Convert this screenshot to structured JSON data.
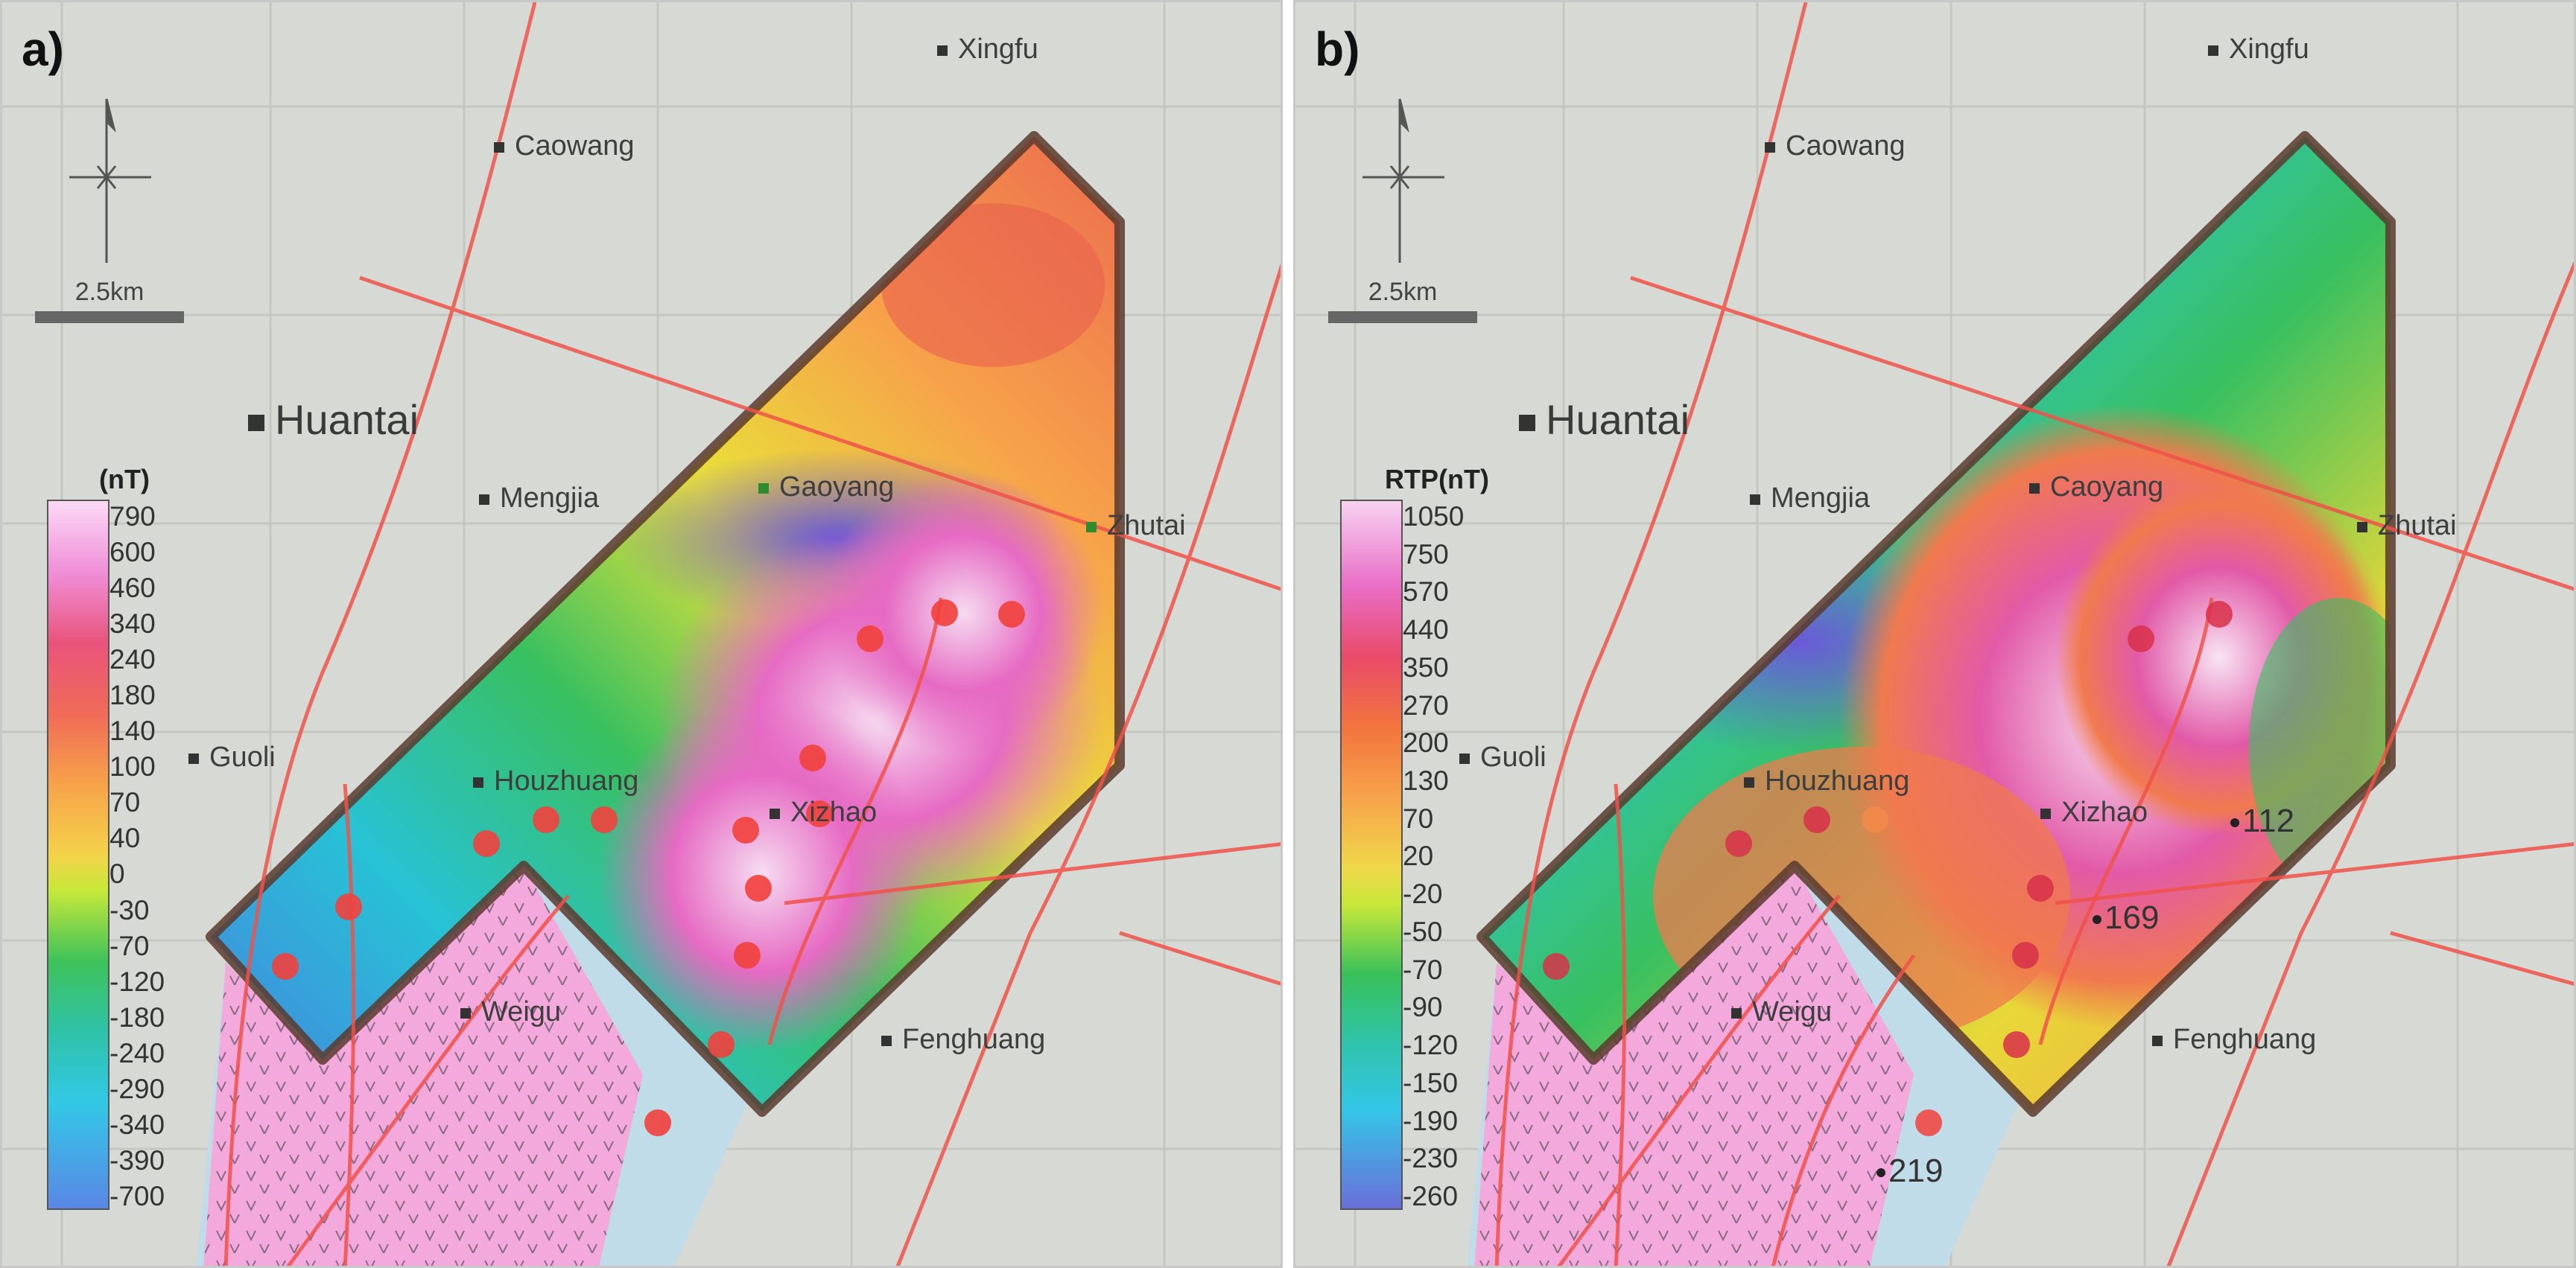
{
  "panels": [
    {
      "label": "a)",
      "legend_title": "(nT)",
      "legend_values": [
        "790",
        "600",
        "460",
        "340",
        "240",
        "180",
        "140",
        "100",
        "70",
        "40",
        "0",
        "-30",
        "-70",
        "-120",
        "-180",
        "-240",
        "-290",
        "-340",
        "-390",
        "-700"
      ],
      "scale_label": "2.5km",
      "places": [
        {
          "name": "Xingfu"
        },
        {
          "name": "Caowang"
        },
        {
          "name": "Huantai"
        },
        {
          "name": "Mengjia"
        },
        {
          "name": "Gaoyang"
        },
        {
          "name": "Zhutai"
        },
        {
          "name": "Guoli"
        },
        {
          "name": "Houzhuang"
        },
        {
          "name": "Xizhao"
        },
        {
          "name": "Weigu"
        },
        {
          "name": "Fenghuang"
        }
      ],
      "point_labels": []
    },
    {
      "label": "b)",
      "legend_title": "RTP(nT)",
      "legend_values": [
        "1050",
        "750",
        "570",
        "440",
        "350",
        "270",
        "200",
        "130",
        "70",
        "20",
        "-20",
        "-50",
        "-70",
        "-90",
        "-120",
        "-150",
        "-190",
        "-230",
        "-260"
      ],
      "scale_label": "2.5km",
      "places": [
        {
          "name": "Xingfu"
        },
        {
          "name": "Caowang"
        },
        {
          "name": "Huantai"
        },
        {
          "name": "Mengjia"
        },
        {
          "name": "Caoyang"
        },
        {
          "name": "Zhutai"
        },
        {
          "name": "Guoli"
        },
        {
          "name": "Houzhuang"
        },
        {
          "name": "Xizhao"
        },
        {
          "name": "Weigu"
        },
        {
          "name": "Fenghuang"
        }
      ],
      "point_labels": [
        "112",
        "169",
        "219"
      ]
    }
  ],
  "colors": {
    "map_bg": "#d7d9d4",
    "fault_line": "#f0524a",
    "boundary": "#5a3a2e",
    "intrusion_fill": "#f4a9dc",
    "drill_point": "#f2413c"
  }
}
